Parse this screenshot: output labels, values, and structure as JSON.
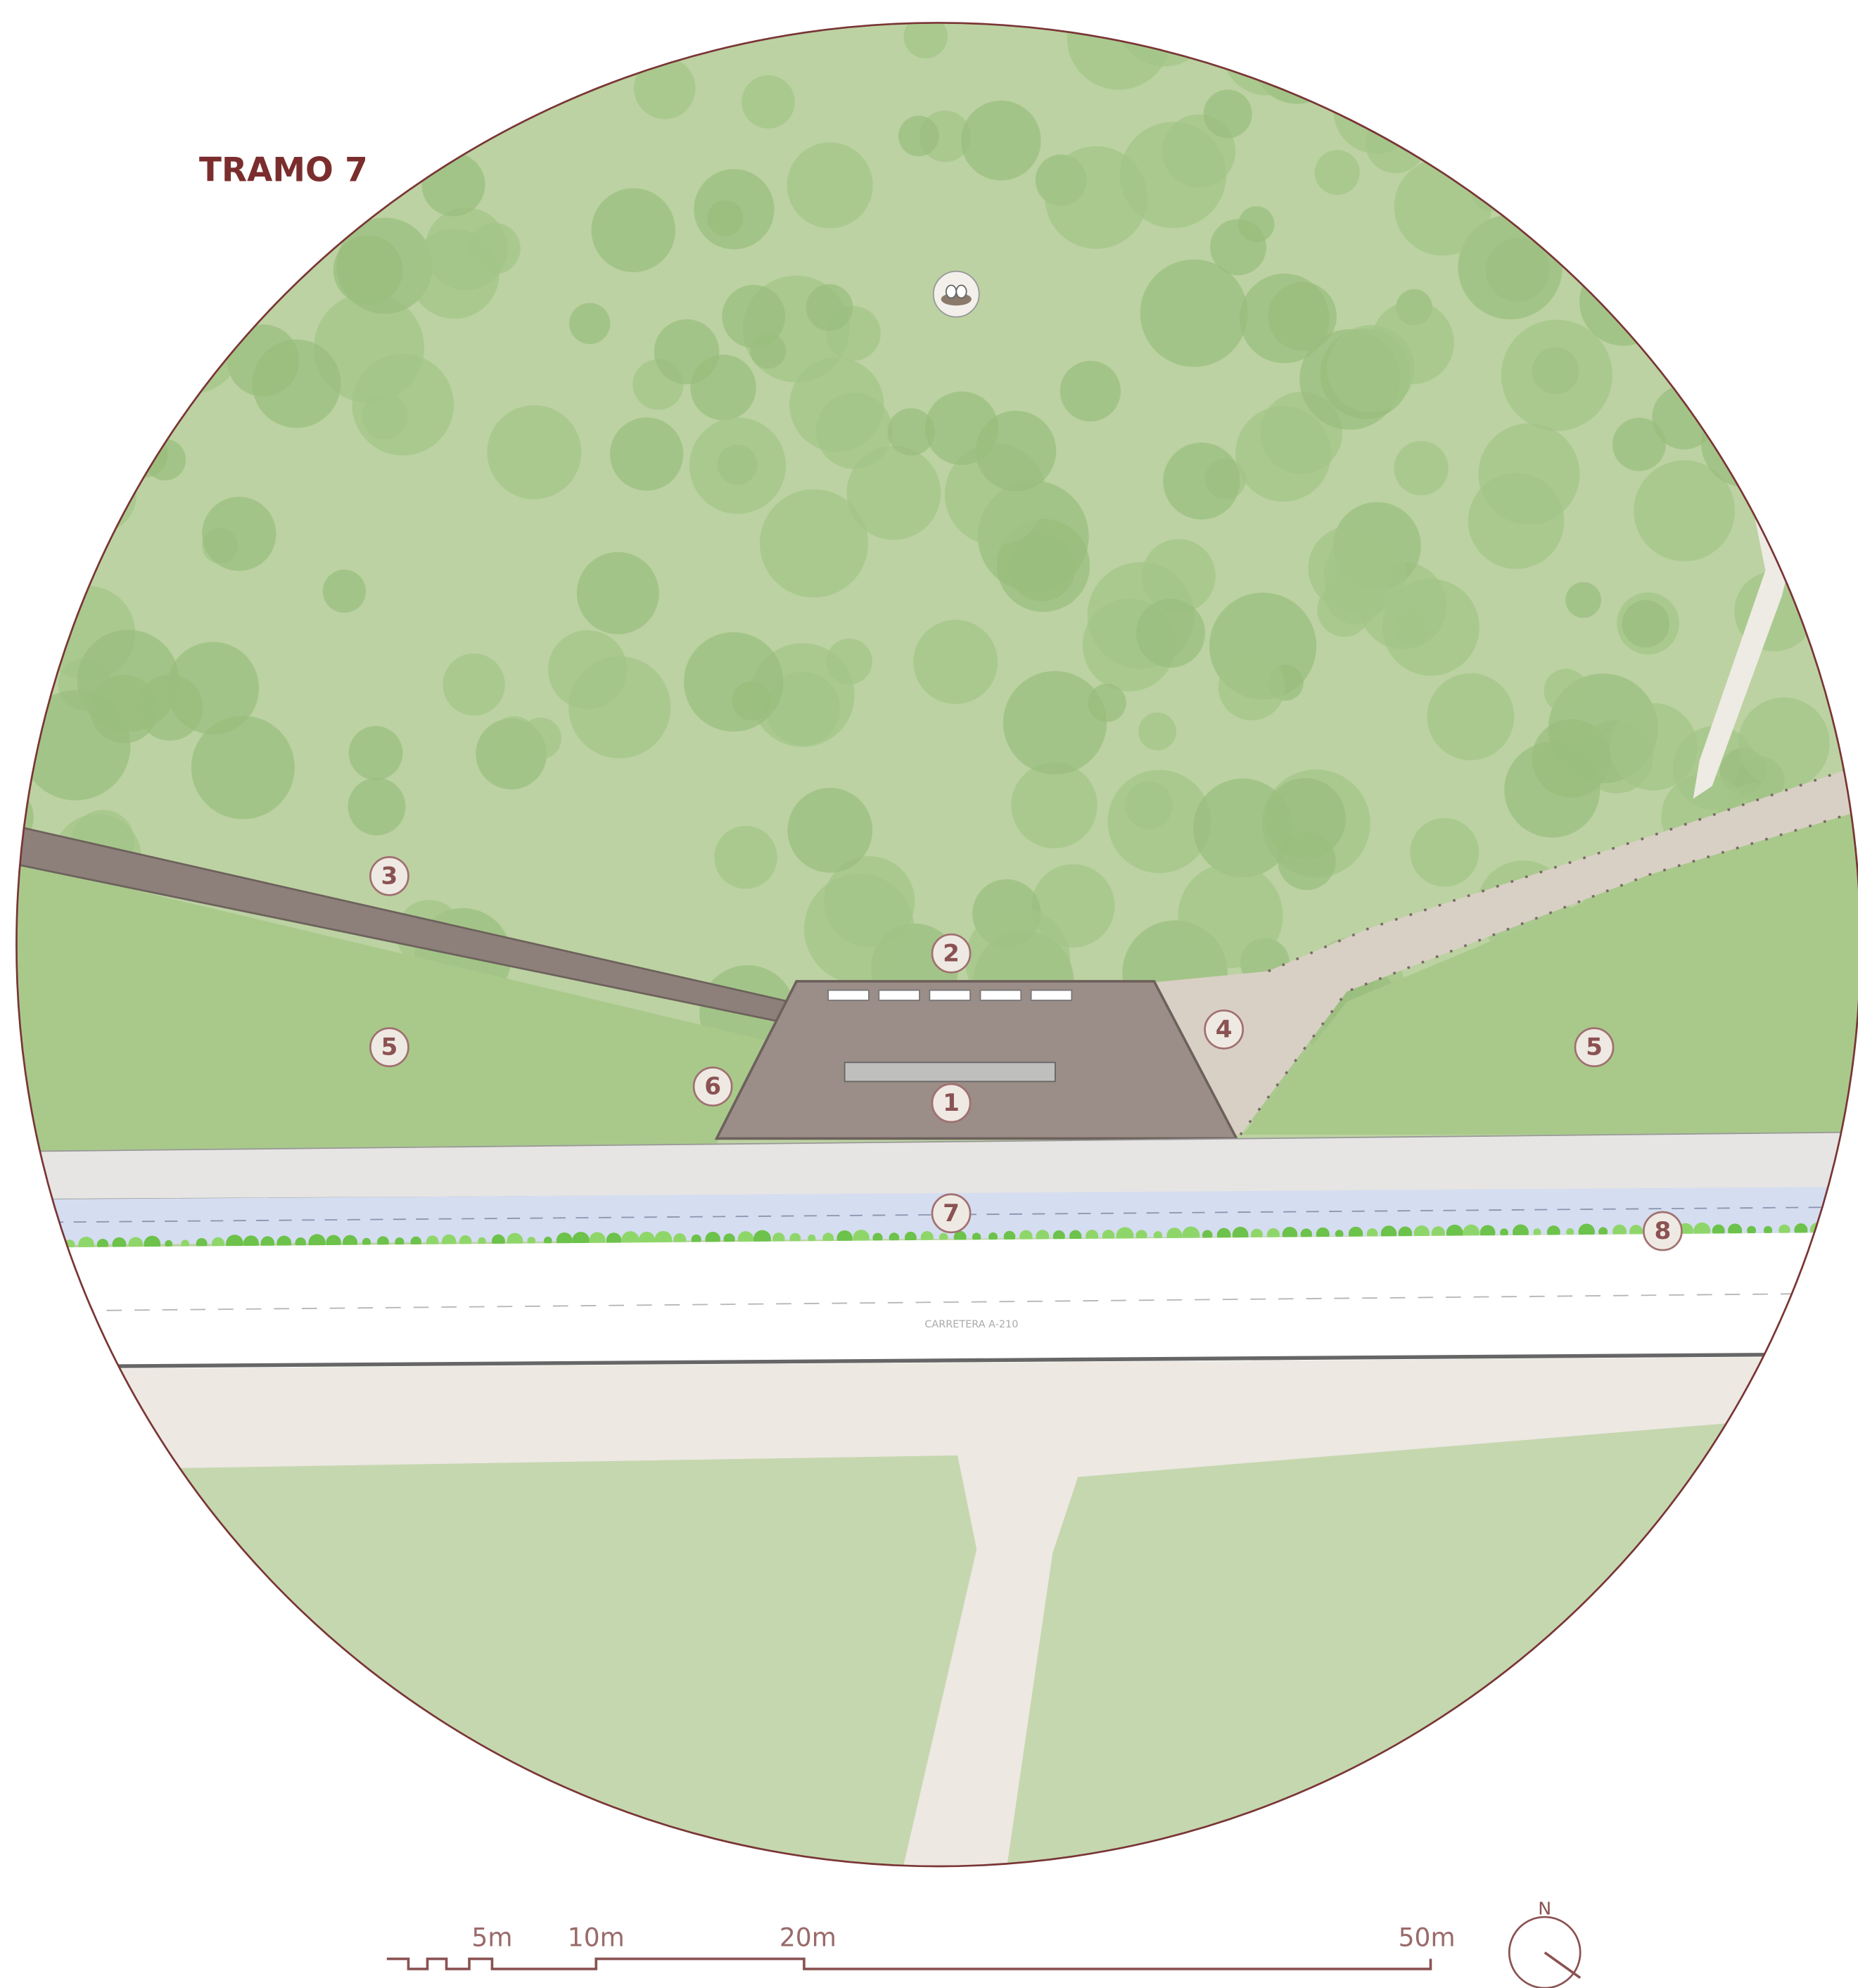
{
  "title": "TRAMO 7",
  "markers": [
    "1",
    "2",
    "3",
    "4",
    "5",
    "5",
    "6",
    "7",
    "8"
  ],
  "road_label": "CARRETERA A-210",
  "scale_bar": {
    "labels": [
      "5m",
      "10m",
      "20m",
      "50m"
    ]
  },
  "north_label": "N"
}
